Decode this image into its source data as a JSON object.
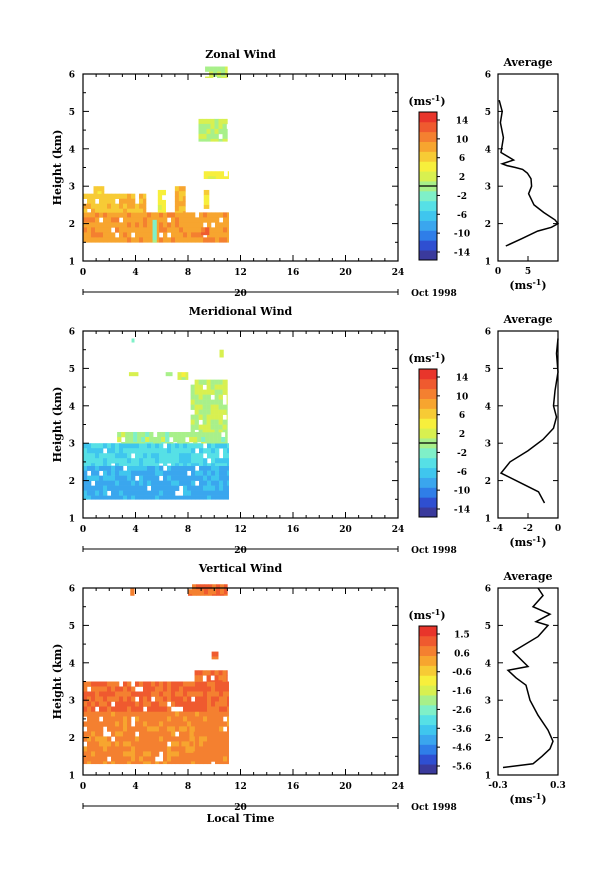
{
  "colors": {
    "scale": [
      "#3a3a9c",
      "#2f4fd1",
      "#2f7ee8",
      "#3aa6ee",
      "#3fc6ee",
      "#56e0e6",
      "#7ff0c8",
      "#a8f08a",
      "#d8f050",
      "#f7ef3c",
      "#f7cb35",
      "#f7a52f",
      "#f48030",
      "#ef5a2f",
      "#e8352b"
    ],
    "contour": "#000000"
  },
  "shared": {
    "xlabel": "Local Time",
    "xticks": [
      0,
      4,
      8,
      12,
      16,
      20,
      24
    ],
    "date_tick": "20",
    "date_label": "Oct 1998",
    "ylabel": "Height (km)",
    "yticks": [
      1,
      2,
      3,
      4,
      5,
      6
    ],
    "colorbar_unit": "(ms",
    "colorbar_unit_sup": "-1",
    "colorbar_unit_close": ")",
    "profile_title": "Average",
    "profile_unit": "(ms",
    "profile_unit_sup": "-1",
    "profile_unit_close": ")"
  },
  "chart_data": [
    {
      "type": "heatmap",
      "title": "Zonal Wind",
      "xlim": [
        0,
        24
      ],
      "ylim": [
        1,
        6
      ],
      "colorbar": {
        "ticks": [
          "14",
          "10",
          "6",
          "2",
          "-2",
          "-6",
          "-10",
          "-14"
        ],
        "range": [
          -16,
          16
        ]
      },
      "blocks": [
        {
          "x": [
            0,
            11.1
          ],
          "y": [
            1.5,
            2.3
          ],
          "value": 9
        },
        {
          "x": [
            0,
            4.8
          ],
          "y": [
            2.3,
            2.8
          ],
          "value": 7
        },
        {
          "x": [
            0.8,
            1.6
          ],
          "y": [
            2.8,
            3.0
          ],
          "value": 6
        },
        {
          "x": [
            5.3,
            5.6
          ],
          "y": [
            1.5,
            2.1
          ],
          "value": -2
        },
        {
          "x": [
            5.7,
            6.3
          ],
          "y": [
            2.3,
            2.9
          ],
          "value": 4
        },
        {
          "x": [
            7.0,
            7.8
          ],
          "y": [
            2.3,
            3.0
          ],
          "value": 8
        },
        {
          "x": [
            9.2,
            9.6
          ],
          "y": [
            2.4,
            2.9
          ],
          "value": 6
        },
        {
          "x": [
            9.0,
            9.6
          ],
          "y": [
            1.7,
            1.9
          ],
          "value": 12
        },
        {
          "x": [
            9.2,
            11.1
          ],
          "y": [
            3.2,
            3.4
          ],
          "value": 3
        },
        {
          "x": [
            8.8,
            11.0
          ],
          "y": [
            4.2,
            4.8
          ],
          "value": 1
        },
        {
          "x": [
            9.3,
            11.0
          ],
          "y": [
            5.9,
            6.2
          ],
          "value": 1
        }
      ],
      "profile": {
        "xlim": [
          0,
          10
        ],
        "xticks": [
          0,
          5
        ],
        "xtick_labels": [
          "0",
          "5"
        ],
        "x": [
          1.3,
          4.0,
          6.6,
          8.9,
          10.0,
          9.5,
          7.6,
          6.0,
          5.1,
          5.6,
          5.5,
          4.9,
          4.1,
          2.9,
          1.5,
          0.7,
          2.6,
          0.5,
          0.9,
          0.4,
          0.7,
          0.2
        ],
        "y": [
          1.4,
          1.6,
          1.8,
          1.9,
          2.0,
          2.1,
          2.3,
          2.5,
          2.8,
          3.0,
          3.2,
          3.35,
          3.45,
          3.5,
          3.55,
          3.6,
          3.7,
          3.9,
          4.3,
          4.7,
          5.0,
          5.3
        ]
      }
    },
    {
      "type": "heatmap",
      "title": "Meridional Wind",
      "xlim": [
        0,
        24
      ],
      "ylim": [
        1,
        6
      ],
      "colorbar": {
        "ticks": [
          "14",
          "10",
          "6",
          "2",
          "-2",
          "-6",
          "-10",
          "-14"
        ],
        "range": [
          -16,
          16
        ]
      },
      "blocks": [
        {
          "x": [
            0,
            11.1
          ],
          "y": [
            1.5,
            2.4
          ],
          "value": -8
        },
        {
          "x": [
            0,
            11.1
          ],
          "y": [
            2.4,
            3.0
          ],
          "value": -5
        },
        {
          "x": [
            2.6,
            11.0
          ],
          "y": [
            3.0,
            3.3
          ],
          "value": 0
        },
        {
          "x": [
            8.2,
            11.0
          ],
          "y": [
            3.3,
            4.7
          ],
          "value": 1
        },
        {
          "x": [
            3.5,
            4.2
          ],
          "y": [
            4.8,
            4.9
          ],
          "value": 1
        },
        {
          "x": [
            6.3,
            6.8
          ],
          "y": [
            4.8,
            4.9
          ],
          "value": 1
        },
        {
          "x": [
            7.2,
            8.0
          ],
          "y": [
            4.7,
            4.9
          ],
          "value": 2
        },
        {
          "x": [
            10.4,
            10.7
          ],
          "y": [
            5.3,
            5.5
          ],
          "value": 1
        },
        {
          "x": [
            3.7,
            3.9
          ],
          "y": [
            5.7,
            5.8
          ],
          "value": -1
        }
      ],
      "profile": {
        "xlim": [
          -4,
          0
        ],
        "xticks": [
          -4,
          -2,
          0
        ],
        "xtick_labels": [
          "-4",
          "-2",
          "0"
        ],
        "x": [
          -0.9,
          -1.3,
          -2.3,
          -3.8,
          -3.2,
          -2.0,
          -1.0,
          -0.3,
          -0.1,
          -0.3,
          -0.2,
          0.0,
          -0.1,
          0.0
        ],
        "y": [
          1.4,
          1.7,
          1.9,
          2.2,
          2.5,
          2.8,
          3.1,
          3.4,
          3.7,
          4.0,
          4.4,
          4.9,
          5.4,
          5.8
        ]
      }
    },
    {
      "type": "heatmap",
      "title": "Vertical Wind",
      "xlim": [
        0,
        24
      ],
      "ylim": [
        1,
        6
      ],
      "colorbar": {
        "ticks": [
          "1.5",
          "0.6",
          "-0.6",
          "-1.6",
          "-2.6",
          "-3.6",
          "-4.6",
          "-5.6"
        ],
        "range": [
          -6,
          2
        ]
      },
      "blocks": [
        {
          "x": [
            0,
            11.1
          ],
          "y": [
            1.3,
            2.7
          ],
          "value": 0.6
        },
        {
          "x": [
            0,
            11.1
          ],
          "y": [
            2.7,
            3.5
          ],
          "value": 1.0
        },
        {
          "x": [
            8.5,
            11.0
          ],
          "y": [
            3.5,
            3.8
          ],
          "value": 0.9
        },
        {
          "x": [
            7.5,
            8.5
          ],
          "y": [
            1.6,
            2.3
          ],
          "value": 0.2
        },
        {
          "x": [
            9.8,
            10.3
          ],
          "y": [
            4.1,
            4.3
          ],
          "value": 0.9
        },
        {
          "x": [
            8.0,
            11.0
          ],
          "y": [
            5.8,
            6.1
          ],
          "value": 0.9
        },
        {
          "x": [
            3.6,
            3.9
          ],
          "y": [
            5.8,
            6.0
          ],
          "value": 0.9
        }
      ],
      "profile": {
        "xlim": [
          -0.3,
          0.3
        ],
        "xticks": [
          -0.3,
          0.3
        ],
        "xtick_labels": [
          "-0.3",
          "0.3"
        ],
        "x": [
          -0.25,
          0.05,
          0.14,
          0.22,
          0.25,
          0.2,
          0.1,
          0.02,
          -0.02,
          -0.12,
          -0.2,
          0.0,
          -0.15,
          0.1,
          0.2,
          0.08,
          0.22,
          0.05,
          0.15,
          0.1
        ],
        "y": [
          1.2,
          1.3,
          1.5,
          1.7,
          1.9,
          2.2,
          2.6,
          3.0,
          3.4,
          3.6,
          3.8,
          3.9,
          4.3,
          4.7,
          5.0,
          5.1,
          5.3,
          5.5,
          5.8,
          6.0
        ]
      }
    }
  ]
}
